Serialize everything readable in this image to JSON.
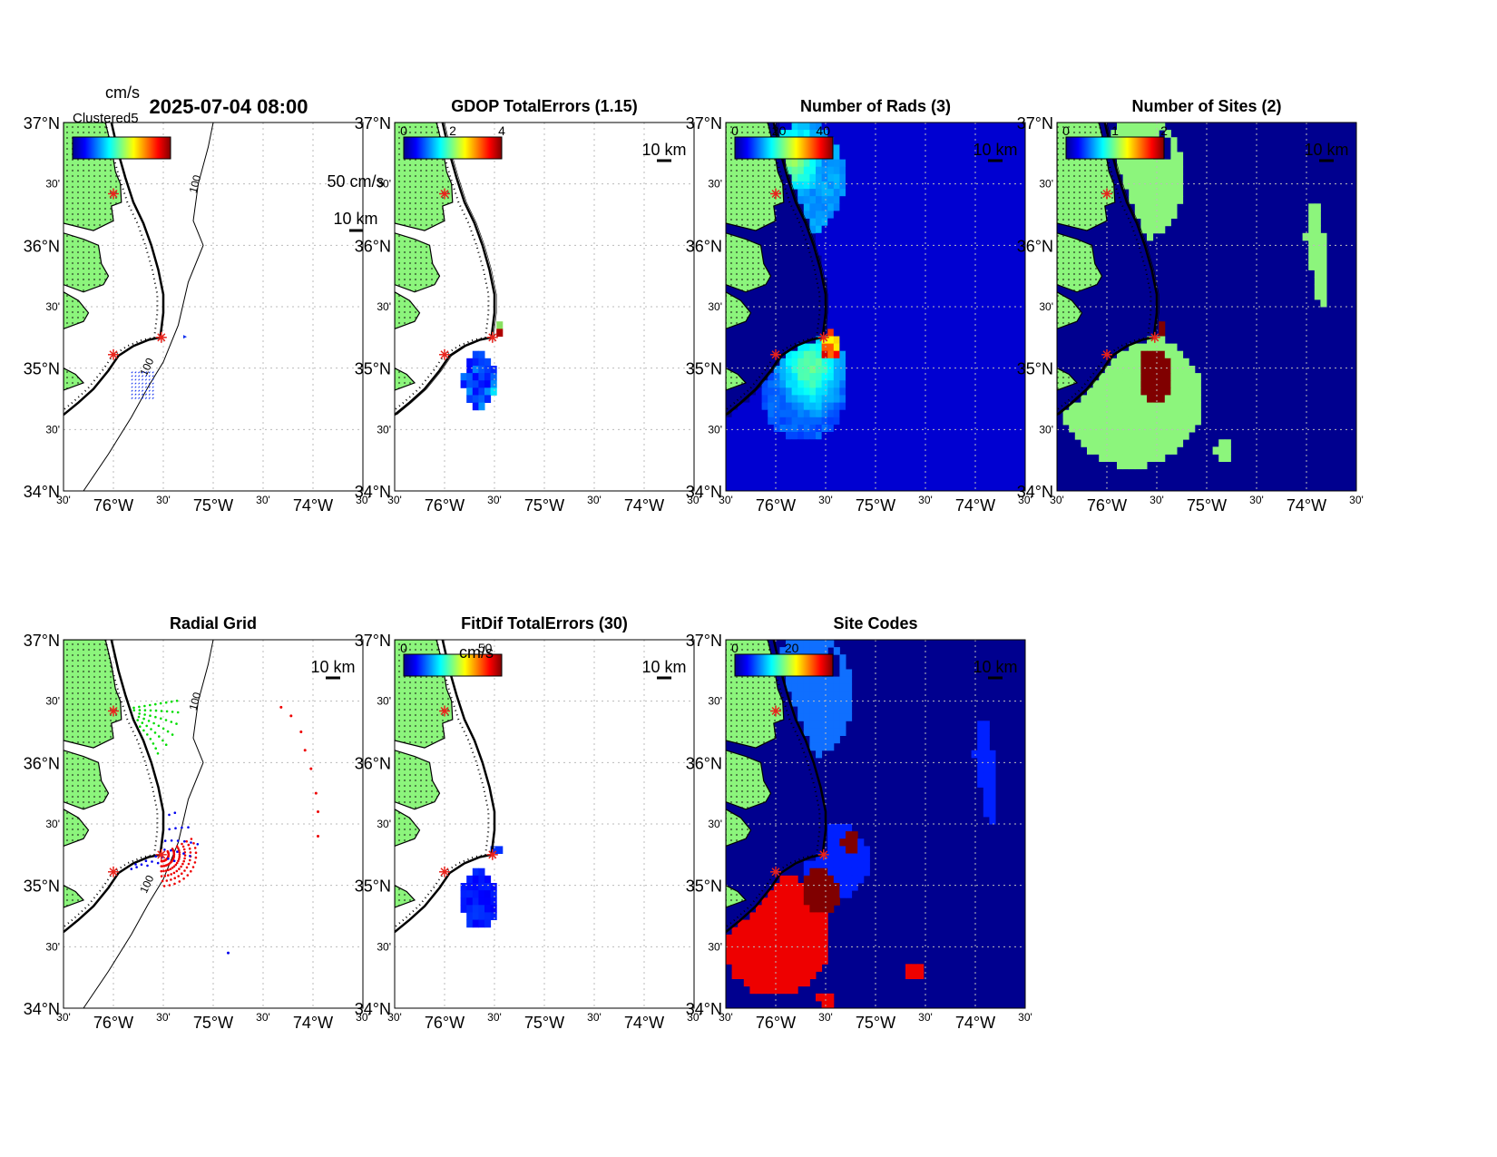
{
  "figure": {
    "timestamp": "2025-07-04 08:00",
    "speed_units": "cm/s",
    "overlapping_label": "Clustered5",
    "scale_vector_label": "50 cm/s",
    "scale_bar_label": "10 km",
    "contour_label": "100"
  },
  "axes_labels": {
    "lat": [
      "37°N",
      "30'",
      "36°N",
      "30'",
      "35°N",
      "30'",
      "34°N"
    ],
    "lon": [
      "30'",
      "76°W",
      "30'",
      "75°W",
      "30'",
      "74°W",
      "30'"
    ]
  },
  "panels": [
    {
      "id": "velocity",
      "title": "",
      "colorbar_ticks": [],
      "colorbar_units": "cm/s"
    },
    {
      "id": "gdop",
      "title": "GDOP TotalErrors (1.15)",
      "colorbar_ticks": [
        "0",
        "2",
        "4"
      ]
    },
    {
      "id": "nrads",
      "title": "Number of Rads (3)",
      "colorbar_ticks": [
        "0",
        "20",
        "40"
      ]
    },
    {
      "id": "nsites",
      "title": "Number of Sites (2)",
      "colorbar_ticks": [
        "0",
        "1",
        "2"
      ]
    },
    {
      "id": "radgrid",
      "title": "Radial Grid",
      "colorbar_ticks": []
    },
    {
      "id": "fitdif",
      "title": "FitDif TotalErrors (30)",
      "colorbar_ticks": [
        "0",
        "50"
      ],
      "colorbar_units": "cm/s"
    },
    {
      "id": "sitecodes",
      "title": "Site Codes",
      "colorbar_ticks": [
        "0",
        "20"
      ]
    }
  ],
  "map_extent": {
    "lon": [
      -76.5,
      -73.5
    ],
    "lat": [
      34.0,
      37.0
    ]
  },
  "radar_sites": [
    {
      "lon": -76.0,
      "lat": 36.42
    },
    {
      "lon": -75.52,
      "lat": 35.25
    },
    {
      "lon": -76.0,
      "lat": 35.11
    }
  ],
  "colors": {
    "land": "#8CF57C",
    "ocean_fill": "#00008F",
    "site_marker": "#E8231C",
    "radial_site1": "#00DD00",
    "radial_site2": "#EE0000",
    "radial_site3": "#0000EE",
    "sitecode_light": "#0F6FFF",
    "sitecode_mid": "#0020FF",
    "sitecode_red": "#EE0000",
    "sitecode_dark": "#800000"
  }
}
